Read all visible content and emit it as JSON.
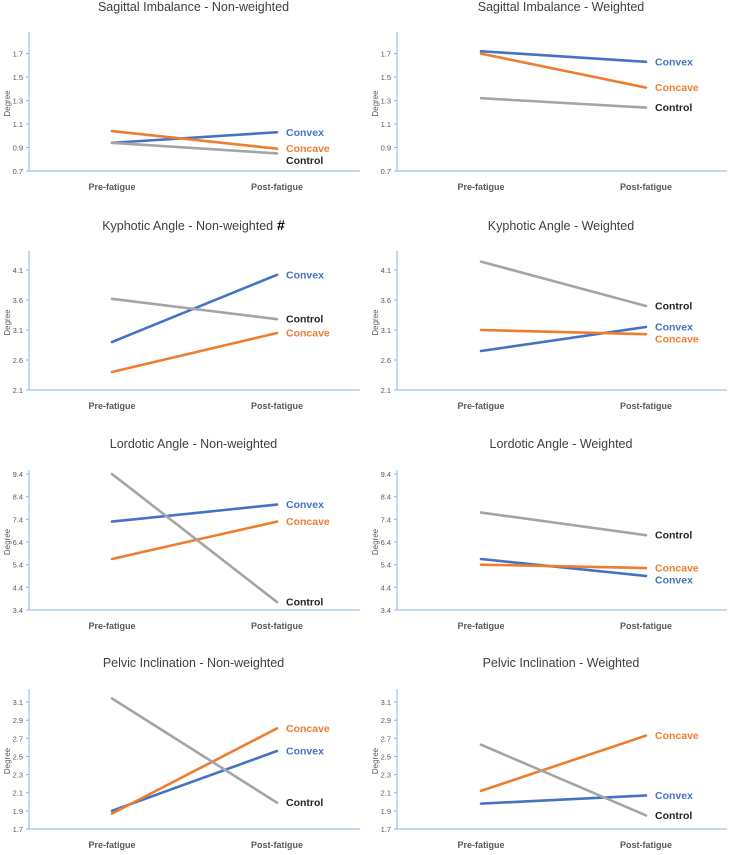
{
  "colors": {
    "convex": "#4472C4",
    "concave": "#ED7D31",
    "control": "#A5A5A5",
    "axis": "#8EB4E3",
    "tick": "#595959",
    "title": "#404040"
  },
  "chart_data": [
    {
      "type": "line",
      "title": "Sagittal Imbalance - Non-weighted",
      "marker": "",
      "ylabel": "Degree",
      "categories": [
        "Pre-fatigue",
        "Post-fatigue"
      ],
      "ylim": [
        0.7,
        1.85
      ],
      "yticks": [
        "0.7",
        "0.9",
        "1.1",
        "1.3",
        "1.5",
        "1.7"
      ],
      "series": [
        {
          "name": "Convex",
          "key": "convex",
          "values": [
            0.94,
            1.03
          ]
        },
        {
          "name": "Concave",
          "key": "concave",
          "values": [
            1.04,
            0.89
          ]
        },
        {
          "name": "Control",
          "key": "control",
          "values": [
            0.94,
            0.85
          ]
        }
      ]
    },
    {
      "type": "line",
      "title": "Sagittal Imbalance - Weighted",
      "marker": "",
      "ylabel": "Degree",
      "categories": [
        "Pre-fatigue",
        "Post-fatigue"
      ],
      "ylim": [
        0.7,
        1.85
      ],
      "yticks": [
        "0.7",
        "0.9",
        "1.1",
        "1.3",
        "1.5",
        "1.7"
      ],
      "series": [
        {
          "name": "Convex",
          "key": "convex",
          "values": [
            1.72,
            1.63
          ]
        },
        {
          "name": "Concave",
          "key": "concave",
          "values": [
            1.7,
            1.41
          ]
        },
        {
          "name": "Control",
          "key": "control",
          "values": [
            1.32,
            1.24
          ]
        }
      ]
    },
    {
      "type": "line",
      "title": "Kyphotic Angle - Non-weighted",
      "marker": "#",
      "ylabel": "Degree",
      "categories": [
        "Pre-fatigue",
        "Post-fatigue"
      ],
      "ylim": [
        2.1,
        4.35
      ],
      "yticks": [
        "2.1",
        "2.6",
        "3.1",
        "3.6",
        "4.1"
      ],
      "series": [
        {
          "name": "Convex",
          "key": "convex",
          "values": [
            2.9,
            4.02
          ]
        },
        {
          "name": "Concave",
          "key": "concave",
          "values": [
            2.4,
            3.05
          ]
        },
        {
          "name": "Control",
          "key": "control",
          "values": [
            3.62,
            3.28
          ]
        }
      ]
    },
    {
      "type": "line",
      "title": "Kyphotic Angle - Weighted",
      "marker": "",
      "ylabel": "Degree",
      "categories": [
        "Pre-fatigue",
        "Post-fatigue"
      ],
      "ylim": [
        2.1,
        4.35
      ],
      "yticks": [
        "2.1",
        "2.6",
        "3.1",
        "3.6",
        "4.1"
      ],
      "series": [
        {
          "name": "Convex",
          "key": "convex",
          "values": [
            2.75,
            3.15
          ]
        },
        {
          "name": "Concave",
          "key": "concave",
          "values": [
            3.1,
            3.03
          ]
        },
        {
          "name": "Control",
          "key": "control",
          "values": [
            4.24,
            3.5
          ]
        }
      ]
    },
    {
      "type": "line",
      "title": "Lordotic Angle - Non-weighted",
      "marker": "",
      "ylabel": "Degree",
      "categories": [
        "Pre-fatigue",
        "Post-fatigue"
      ],
      "ylim": [
        3.4,
        9.4
      ],
      "yticks": [
        "3.4",
        "4.4",
        "5.4",
        "6.4",
        "7.4",
        "8.4",
        "9.4"
      ],
      "series": [
        {
          "name": "Convex",
          "key": "convex",
          "values": [
            7.3,
            8.05
          ]
        },
        {
          "name": "Concave",
          "key": "concave",
          "values": [
            5.65,
            7.3
          ]
        },
        {
          "name": "Control",
          "key": "control",
          "values": [
            9.4,
            3.75
          ]
        }
      ]
    },
    {
      "type": "line",
      "title": "Lordotic Angle - Weighted",
      "marker": "",
      "ylabel": "Degree",
      "categories": [
        "Pre-fatigue",
        "Post-fatigue"
      ],
      "ylim": [
        3.4,
        9.4
      ],
      "yticks": [
        "3.4",
        "4.4",
        "5.4",
        "6.4",
        "7.4",
        "8.4",
        "9.4"
      ],
      "series": [
        {
          "name": "Convex",
          "key": "convex",
          "values": [
            5.65,
            4.9
          ]
        },
        {
          "name": "Concave",
          "key": "concave",
          "values": [
            5.4,
            5.25
          ]
        },
        {
          "name": "Control",
          "key": "control",
          "values": [
            7.7,
            6.7
          ]
        }
      ]
    },
    {
      "type": "line",
      "title": "Pelvic Inclination - Non-weighted",
      "marker": "",
      "ylabel": "Degree",
      "categories": [
        "Pre-fatigue",
        "Post-fatigue"
      ],
      "ylim": [
        1.7,
        3.2
      ],
      "yticks": [
        "1.7",
        "1.9",
        "2.1",
        "2.3",
        "2.5",
        "2.7",
        "2.9",
        "3.1"
      ],
      "series": [
        {
          "name": "Convex",
          "key": "convex",
          "values": [
            1.9,
            2.56
          ]
        },
        {
          "name": "Concave",
          "key": "concave",
          "values": [
            1.87,
            2.81
          ]
        },
        {
          "name": "Control",
          "key": "control",
          "values": [
            3.14,
            1.99
          ]
        }
      ]
    },
    {
      "type": "line",
      "title": "Pelvic Inclination - Weighted",
      "marker": "",
      "ylabel": "Degree",
      "categories": [
        "Pre-fatigue",
        "Post-fatigue"
      ],
      "ylim": [
        1.7,
        3.2
      ],
      "yticks": [
        "1.7",
        "1.9",
        "2.1",
        "2.3",
        "2.5",
        "2.7",
        "2.9",
        "3.1"
      ],
      "series": [
        {
          "name": "Convex",
          "key": "convex",
          "values": [
            1.98,
            2.07
          ]
        },
        {
          "name": "Concave",
          "key": "concave",
          "values": [
            2.12,
            2.73
          ]
        },
        {
          "name": "Control",
          "key": "control",
          "values": [
            2.63,
            1.85
          ]
        }
      ]
    }
  ]
}
